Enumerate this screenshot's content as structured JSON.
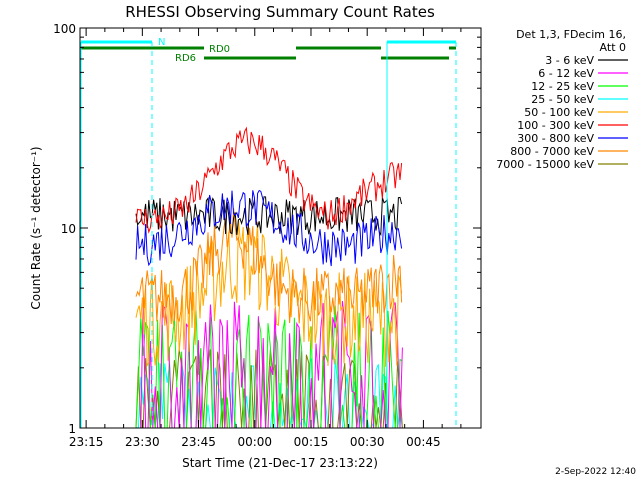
{
  "chart_data": {
    "type": "line",
    "title": "RHESSI Observing Summary Count Rates",
    "xlabel": "Start Time (21-Dec-17 23:13:22)",
    "ylabel": "Count Rate (s⁻¹ detector⁻¹)",
    "y_scale": "log",
    "ylim": [
      1,
      100
    ],
    "x_ticks": [
      "23:15",
      "23:30",
      "23:45",
      "00:00",
      "00:15",
      "00:30",
      "00:45"
    ],
    "y_ticks": [
      "1",
      "10",
      "100"
    ],
    "timestamp": "2-Sep-2022 12:40",
    "legend_header": [
      "Det 1,3, FDecim 16,",
      "Att 0"
    ],
    "legend_position": "right",
    "series": [
      {
        "name": "3 - 6 keV",
        "color": "#000000",
        "level": 11.5,
        "noise": 0.22
      },
      {
        "name": "6 - 12 keV",
        "color": "#ff00ff",
        "level": 2.6,
        "noise": 0.55
      },
      {
        "name": "12 - 25 keV",
        "color": "#00ff00",
        "level": 2.3,
        "noise": 0.6
      },
      {
        "name": "25 - 50 keV",
        "color": "#00ffff",
        "level": 1.5,
        "noise": 0.4
      },
      {
        "name": "50 - 100 keV",
        "color": "#ffaa00",
        "level": 4.0,
        "noise": 0.55
      },
      {
        "name": "100 - 300 keV",
        "color": "#ff0000",
        "level": 14,
        "noise": 0.18
      },
      {
        "name": "300 - 800 keV",
        "color": "#0000ff",
        "level": 9.0,
        "noise": 0.25
      },
      {
        "name": "800 - 7000 keV",
        "color": "#ff8800",
        "level": 5.5,
        "noise": 0.35
      },
      {
        "name": "7000 - 15000 keV",
        "color": "#808000",
        "level": 1.8,
        "noise": 0.35
      }
    ],
    "peaks": {
      "red_peak": 27,
      "red_end": 19,
      "blue_peak": 13
    },
    "flags": [
      {
        "label": "N",
        "color": "#00ffff"
      },
      {
        "label": "RD0",
        "color": "#008000"
      },
      {
        "label": "RD6",
        "color": "#008000"
      }
    ]
  }
}
